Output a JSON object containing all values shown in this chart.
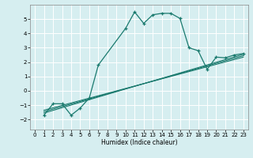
{
  "xlabel": "Humidex (Indice chaleur)",
  "ylabel": "",
  "bg_color": "#d6eef0",
  "grid_color": "#ffffff",
  "line_color": "#1a7a6e",
  "xlim": [
    -0.5,
    23.5
  ],
  "ylim": [
    -2.7,
    6.0
  ],
  "yticks": [
    -2,
    -1,
    0,
    1,
    2,
    3,
    4,
    5
  ],
  "xticks": [
    0,
    1,
    2,
    3,
    4,
    5,
    6,
    7,
    8,
    9,
    10,
    11,
    12,
    13,
    14,
    15,
    16,
    17,
    18,
    19,
    20,
    21,
    22,
    23
  ],
  "curve1_x": [
    1,
    2,
    3,
    4,
    5,
    6,
    7,
    10,
    11,
    12,
    13,
    14,
    15,
    16,
    17,
    18,
    19,
    20,
    21,
    22,
    23
  ],
  "curve1_y": [
    -1.7,
    -0.9,
    -0.9,
    -1.7,
    -1.2,
    -0.5,
    1.8,
    4.35,
    5.5,
    4.7,
    5.3,
    5.4,
    5.4,
    5.05,
    3.0,
    2.8,
    1.5,
    2.35,
    2.3,
    2.5,
    2.6
  ],
  "line2_x": [
    1,
    23
  ],
  "line2_y": [
    -1.55,
    2.55
  ],
  "line3_x": [
    1,
    23
  ],
  "line3_y": [
    -1.45,
    2.45
  ],
  "line4_x": [
    1,
    23
  ],
  "line4_y": [
    -1.35,
    2.35
  ]
}
